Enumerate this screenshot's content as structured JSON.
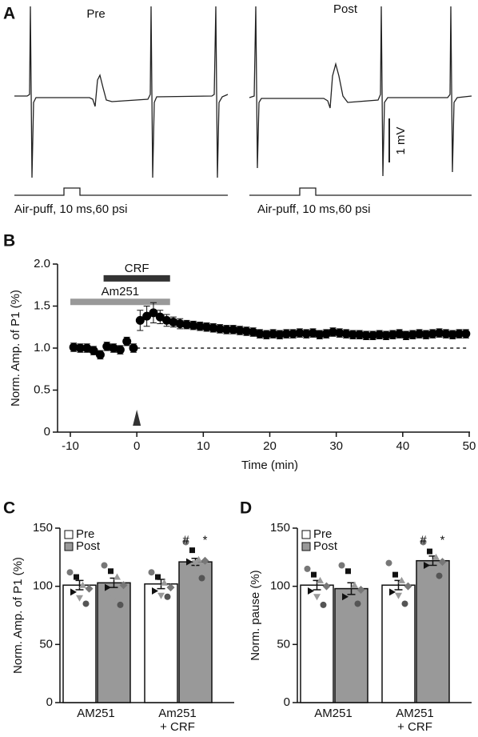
{
  "chart_data": [
    {
      "type": "trace",
      "panel_label": "A",
      "titles": [
        "Pre",
        "Post"
      ],
      "scale_bar_label": "1 mV",
      "stimulus_labels": [
        "Air-puff, 10 ms,60 psi",
        "Air-puff, 10 ms,60 psi"
      ]
    },
    {
      "type": "scatter",
      "panel_label": "B",
      "xlabel": "Time (min)",
      "ylabel": "Norm. Amp. of P1 (%)",
      "xlim": [
        -10,
        50
      ],
      "ylim": [
        0,
        2
      ],
      "xticks": [
        -10,
        0,
        10,
        20,
        30,
        40,
        50
      ],
      "yticks": [
        0,
        0.5,
        {
          "value": 1,
          "label": "1.0"
        },
        1.5,
        {
          "value": 2,
          "label": "2.0"
        }
      ],
      "color": "#000000",
      "reference_line": 1,
      "arrow_x": 0,
      "drug_bars": [
        {
          "label": "CRF",
          "start": -5,
          "end": 5,
          "level": 1.83,
          "color": "#333333"
        },
        {
          "label": "Am251",
          "start": -10,
          "end": 5,
          "level": 1.55,
          "color": "#999999"
        }
      ],
      "x": [
        -9.5,
        -8.5,
        -7.5,
        -6.5,
        -5.5,
        -4.5,
        -3.5,
        -2.5,
        -1.5,
        -0.5,
        0.5,
        1.5,
        2.5,
        3.5,
        4.5,
        5.5,
        6.5,
        7.5,
        8.5,
        9.5,
        10.5,
        11.5,
        12.5,
        13.5,
        14.5,
        15.5,
        16.5,
        17.5,
        18.5,
        19.5,
        20.5,
        21.5,
        22.5,
        23.5,
        24.5,
        25.5,
        26.5,
        27.5,
        28.5,
        29.5,
        30.5,
        31.5,
        32.5,
        33.5,
        34.5,
        35.5,
        36.5,
        37.5,
        38.5,
        39.5,
        40.5,
        41.5,
        42.5,
        43.5,
        44.5,
        45.5,
        46.5,
        47.5,
        48.5,
        49.5
      ],
      "values": [
        1.01,
        1.0,
        1.0,
        0.97,
        0.92,
        1.02,
        1.0,
        0.98,
        1.08,
        1.0,
        1.33,
        1.38,
        1.42,
        1.37,
        1.33,
        1.31,
        1.29,
        1.28,
        1.27,
        1.26,
        1.25,
        1.24,
        1.23,
        1.22,
        1.22,
        1.21,
        1.2,
        1.19,
        1.17,
        1.16,
        1.17,
        1.16,
        1.17,
        1.17,
        1.18,
        1.17,
        1.18,
        1.16,
        1.17,
        1.19,
        1.18,
        1.17,
        1.16,
        1.16,
        1.15,
        1.15,
        1.16,
        1.15,
        1.16,
        1.17,
        1.15,
        1.16,
        1.17,
        1.16,
        1.17,
        1.18,
        1.17,
        1.16,
        1.17,
        1.17
      ],
      "errors": [
        0.05,
        0.05,
        0.05,
        0.05,
        0.05,
        0.05,
        0.05,
        0.05,
        0.05,
        0.05,
        0.12,
        0.12,
        0.12,
        0.08,
        0.07,
        0.06,
        0.06,
        0.05,
        0.05,
        0.05,
        0.05,
        0.05,
        0.05,
        0.05,
        0.05,
        0.05,
        0.05,
        0.05,
        0.05,
        0.05,
        0.05,
        0.05,
        0.05,
        0.05,
        0.05,
        0.05,
        0.05,
        0.05,
        0.05,
        0.05,
        0.05,
        0.05,
        0.05,
        0.05,
        0.05,
        0.05,
        0.05,
        0.05,
        0.05,
        0.05,
        0.05,
        0.05,
        0.05,
        0.05,
        0.05,
        0.05,
        0.05,
        0.05,
        0.05,
        0.05
      ]
    },
    {
      "type": "bar",
      "panel_label": "C",
      "ylabel": "Norm. Amp. of P1 (%)",
      "ylim": [
        0,
        150
      ],
      "yticks": [
        0,
        50,
        100,
        150
      ],
      "legend": "upper left",
      "categories": [
        [
          "AM251"
        ],
        [
          "Am251",
          "+ CRF"
        ]
      ],
      "series": [
        {
          "name": "Pre",
          "color": "#ffffff",
          "values": [
            101,
            102
          ],
          "errors": [
            4,
            4
          ],
          "points": [
            [
              112,
              108,
              101,
              98,
              95,
              90,
              85
            ],
            [
              112,
              108,
              103,
              99,
              96,
              92,
              91
            ]
          ],
          "significance": [
            [],
            []
          ]
        },
        {
          "name": "Post",
          "color": "#999999",
          "values": [
            103,
            121
          ],
          "errors": [
            4,
            3
          ],
          "points": [
            [
              118,
              113,
              108,
              101,
              99,
              90,
              84
            ],
            [
              138,
              131,
              123,
              122,
              121,
              120,
              107
            ]
          ],
          "significance": [
            [],
            [
              "#",
              "*"
            ]
          ]
        }
      ]
    },
    {
      "type": "bar",
      "panel_label": "D",
      "ylabel": "Norm. pause (%)",
      "ylim": [
        0,
        150
      ],
      "yticks": [
        0,
        50,
        100,
        150
      ],
      "legend": "upper left",
      "categories": [
        [
          "AM251"
        ],
        [
          "AM251",
          "+ CRF"
        ]
      ],
      "series": [
        {
          "name": "Pre",
          "color": "#ffffff",
          "values": [
            101,
            101
          ],
          "errors": [
            4,
            4
          ],
          "points": [
            [
              115,
              110,
              105,
              100,
              96,
              91,
              84
            ],
            [
              120,
              110,
              105,
              100,
              95,
              92,
              85
            ]
          ],
          "significance": [
            [],
            []
          ]
        },
        {
          "name": "Post",
          "color": "#999999",
          "values": [
            98,
            122
          ],
          "errors": [
            5,
            4
          ],
          "points": [
            [
              118,
              113,
              101,
              97,
              91,
              88,
              85
            ],
            [
              138,
              130,
              125,
              121,
              118,
              115,
              109
            ]
          ],
          "significance": [
            [],
            [
              "#",
              "*"
            ]
          ]
        }
      ]
    }
  ]
}
